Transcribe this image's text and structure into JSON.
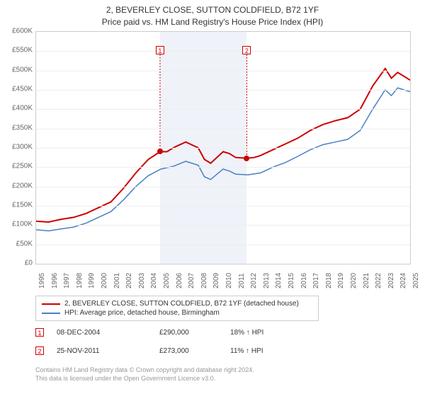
{
  "title": {
    "line1": "2, BEVERLEY CLOSE, SUTTON COLDFIELD, B72 1YF",
    "line2": "Price paid vs. HM Land Registry's House Price Index (HPI)"
  },
  "chart": {
    "type": "line",
    "background_color": "#ffffff",
    "grid_color": "#eeeeee",
    "border_color": "#cccccc",
    "title_fontsize": 12,
    "label_fontsize": 10,
    "y": {
      "min": 0,
      "max": 600000,
      "step": 50000,
      "format_prefix": "£",
      "ticks": [
        "£0",
        "£50K",
        "£100K",
        "£150K",
        "£200K",
        "£250K",
        "£300K",
        "£350K",
        "£400K",
        "£450K",
        "£500K",
        "£550K",
        "£600K"
      ]
    },
    "x": {
      "min": 1995,
      "max": 2025,
      "years": [
        1995,
        1996,
        1997,
        1998,
        1999,
        2000,
        2001,
        2002,
        2003,
        2004,
        2005,
        2006,
        2007,
        2008,
        2009,
        2010,
        2011,
        2012,
        2013,
        2014,
        2015,
        2016,
        2017,
        2018,
        2019,
        2020,
        2021,
        2022,
        2023,
        2024,
        2025
      ]
    },
    "shaded_bands": [
      {
        "start": 2004.94,
        "end": 2011.9,
        "color": "#e8edf5",
        "opacity": 0.7
      }
    ],
    "series": [
      {
        "name": "property",
        "label": "2, BEVERLEY CLOSE, SUTTON COLDFIELD, B72 1YF (detached house)",
        "color": "#cc0000",
        "line_width": 2,
        "data": [
          [
            1995,
            110000
          ],
          [
            1996,
            108000
          ],
          [
            1997,
            115000
          ],
          [
            1998,
            120000
          ],
          [
            1999,
            130000
          ],
          [
            2000,
            145000
          ],
          [
            2001,
            160000
          ],
          [
            2002,
            195000
          ],
          [
            2003,
            235000
          ],
          [
            2004,
            270000
          ],
          [
            2004.94,
            290000
          ],
          [
            2005.5,
            290000
          ],
          [
            2006,
            300000
          ],
          [
            2007,
            315000
          ],
          [
            2008,
            300000
          ],
          [
            2008.5,
            270000
          ],
          [
            2009,
            260000
          ],
          [
            2010,
            290000
          ],
          [
            2010.5,
            285000
          ],
          [
            2011,
            275000
          ],
          [
            2011.9,
            273000
          ],
          [
            2012.5,
            275000
          ],
          [
            2013,
            280000
          ],
          [
            2014,
            295000
          ],
          [
            2015,
            310000
          ],
          [
            2016,
            325000
          ],
          [
            2017,
            345000
          ],
          [
            2018,
            360000
          ],
          [
            2019,
            370000
          ],
          [
            2020,
            378000
          ],
          [
            2021,
            400000
          ],
          [
            2022,
            460000
          ],
          [
            2023,
            505000
          ],
          [
            2023.5,
            480000
          ],
          [
            2024,
            495000
          ],
          [
            2025,
            475000
          ]
        ]
      },
      {
        "name": "hpi",
        "label": "HPI: Average price, detached house, Birmingham",
        "color": "#4a7fc4",
        "line_width": 1.5,
        "data": [
          [
            1995,
            88000
          ],
          [
            1996,
            85000
          ],
          [
            1997,
            90000
          ],
          [
            1998,
            95000
          ],
          [
            1999,
            105000
          ],
          [
            2000,
            120000
          ],
          [
            2001,
            135000
          ],
          [
            2002,
            165000
          ],
          [
            2003,
            200000
          ],
          [
            2004,
            228000
          ],
          [
            2005,
            245000
          ],
          [
            2006,
            252000
          ],
          [
            2007,
            265000
          ],
          [
            2008,
            255000
          ],
          [
            2008.5,
            225000
          ],
          [
            2009,
            218000
          ],
          [
            2010,
            245000
          ],
          [
            2010.5,
            240000
          ],
          [
            2011,
            232000
          ],
          [
            2012,
            230000
          ],
          [
            2013,
            235000
          ],
          [
            2014,
            250000
          ],
          [
            2015,
            262000
          ],
          [
            2016,
            278000
          ],
          [
            2017,
            295000
          ],
          [
            2018,
            308000
          ],
          [
            2019,
            315000
          ],
          [
            2020,
            322000
          ],
          [
            2021,
            345000
          ],
          [
            2022,
            400000
          ],
          [
            2023,
            450000
          ],
          [
            2023.5,
            435000
          ],
          [
            2024,
            455000
          ],
          [
            2025,
            445000
          ]
        ]
      }
    ],
    "markers": [
      {
        "num": "1",
        "x": 2004.94,
        "y": 290000,
        "label_top_offset": 20,
        "color": "#cc0000"
      },
      {
        "num": "2",
        "x": 2011.9,
        "y": 273000,
        "label_top_offset": 20,
        "color": "#cc0000"
      }
    ]
  },
  "legend": {
    "items": [
      {
        "color": "#cc0000",
        "label_path": "chart.series.0.label"
      },
      {
        "color": "#4a7fc4",
        "label_path": "chart.series.1.label"
      }
    ]
  },
  "sales": [
    {
      "num": "1",
      "date": "08-DEC-2004",
      "price": "£290,000",
      "hpi": "18% ↑ HPI"
    },
    {
      "num": "2",
      "date": "25-NOV-2011",
      "price": "£273,000",
      "hpi": "11% ↑ HPI"
    }
  ],
  "footnote": {
    "line1": "Contains HM Land Registry data © Crown copyright and database right 2024.",
    "line2": "This data is licensed under the Open Government Licence v3.0."
  }
}
